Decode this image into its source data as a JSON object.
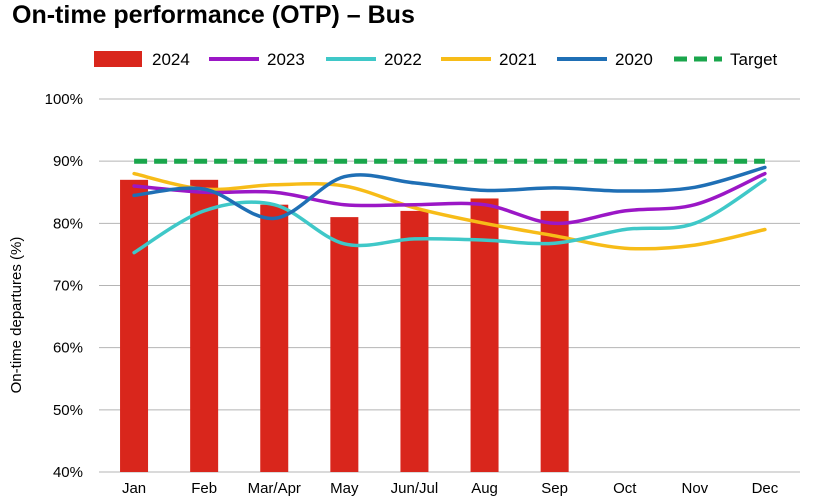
{
  "chart_data": {
    "type": "bar",
    "title": "On-time performance (OTP) – Bus",
    "xlabel": "",
    "ylabel": "On-time departures (%)",
    "ylim": [
      40,
      100
    ],
    "yticks": [
      40,
      50,
      60,
      70,
      80,
      90,
      100
    ],
    "ytick_labels": [
      "40%",
      "50%",
      "60%",
      "70%",
      "80%",
      "90%",
      "100%"
    ],
    "categories": [
      "Jan",
      "Feb",
      "Mar/Apr",
      "May",
      "Jun/Jul",
      "Aug",
      "Sep",
      "Oct",
      "Nov",
      "Dec"
    ],
    "grid": true,
    "legend_position": "top",
    "series": [
      {
        "name": "2024",
        "type": "bar",
        "color": "#d9261c",
        "values": [
          87,
          87,
          83,
          81,
          82,
          84,
          82,
          null,
          null,
          null
        ]
      },
      {
        "name": "2023",
        "type": "line",
        "color": "#9b17c6",
        "values": [
          86,
          85,
          85,
          83,
          83,
          83,
          80,
          82,
          83,
          88
        ]
      },
      {
        "name": "2022",
        "type": "line",
        "color": "#3fc8c8",
        "values": [
          75.3,
          82,
          83,
          76.7,
          77.5,
          77.3,
          76.8,
          79,
          80,
          87
        ]
      },
      {
        "name": "2021",
        "type": "line",
        "color": "#f7bc18",
        "values": [
          88,
          85.5,
          86.2,
          86,
          82.5,
          80,
          78,
          76,
          76.5,
          79
        ]
      },
      {
        "name": "2020",
        "type": "line",
        "color": "#1f6fb5",
        "values": [
          84.5,
          85.5,
          80.8,
          87.5,
          86.5,
          85.3,
          85.7,
          85.2,
          85.8,
          89
        ]
      },
      {
        "name": "Target",
        "type": "dashed-line",
        "color": "#1aa64c",
        "values": [
          90,
          90,
          90,
          90,
          90,
          90,
          90,
          90,
          90,
          90
        ]
      }
    ]
  }
}
